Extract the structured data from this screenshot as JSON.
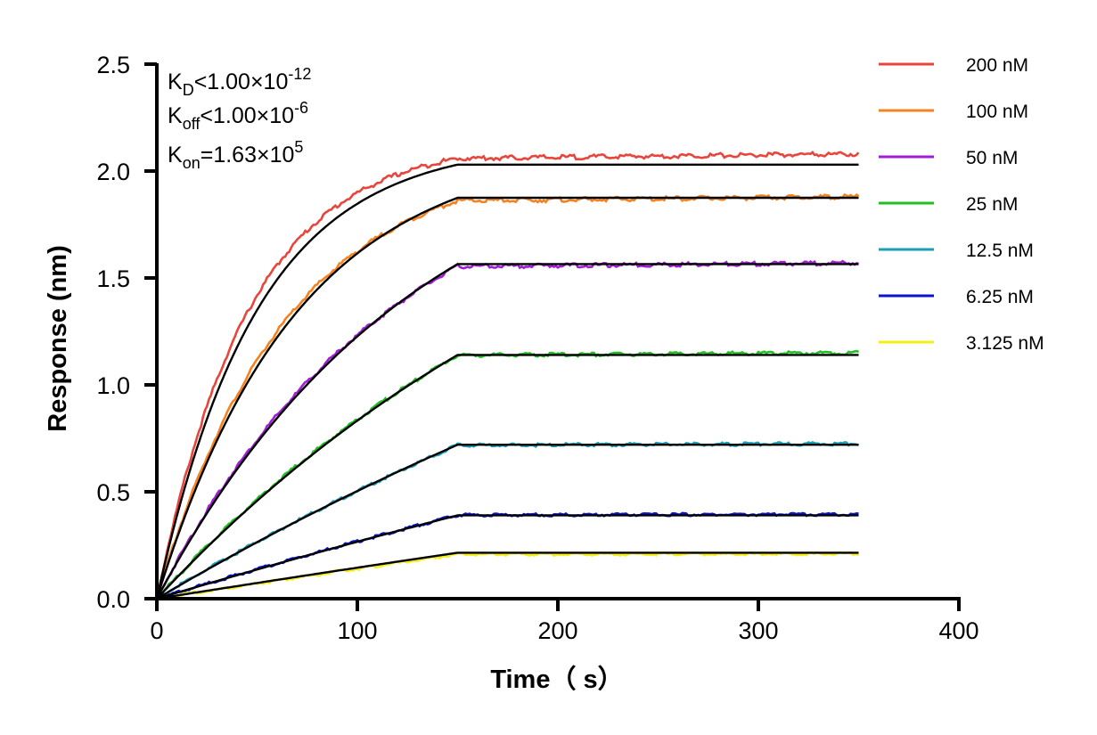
{
  "chart_data": {
    "type": "line",
    "title": "",
    "xlabel": "Time（ s）",
    "ylabel": "Response (nm)",
    "xlim": [
      0,
      400
    ],
    "ylim": [
      0,
      2.5
    ],
    "x_ticks": [
      "0",
      "100",
      "200",
      "300",
      "400"
    ],
    "y_ticks": [
      "0.0",
      "0.5",
      "1.0",
      "1.5",
      "2.0",
      "2.5"
    ],
    "grid": false,
    "legend_position": "right",
    "association_end": 150,
    "x_end": 350,
    "annotations": {
      "kd": {
        "base": "K",
        "sub": "D",
        "op": "<",
        "mantissa": "1.00×10",
        "exp": "-12"
      },
      "koff": {
        "base": "K",
        "sub": "off",
        "op": "<",
        "mantissa": "1.00×10",
        "exp": "-6"
      },
      "kon": {
        "base": "K",
        "sub": "on",
        "op": "=",
        "mantissa": "1.63×10",
        "exp": "5"
      }
    },
    "fit_color": "#000000",
    "series": [
      {
        "name": "200 nM",
        "color": "#e8453c",
        "plateau": 2.08,
        "fit_plateau": 2.03,
        "tau": 50
      },
      {
        "name": "100 nM",
        "color": "#f5821f",
        "plateau": 1.88,
        "fit_plateau": 1.875,
        "tau": 70
      },
      {
        "name": "50 nM",
        "color": "#a21cd6",
        "plateau": 1.57,
        "fit_plateau": 1.565,
        "tau": 130
      },
      {
        "name": "25 nM",
        "color": "#1fc01f",
        "plateau": 1.15,
        "fit_plateau": 1.14,
        "tau": 250
      },
      {
        "name": "12.5 nM",
        "color": "#1e9bb5",
        "plateau": 0.725,
        "fit_plateau": 0.72,
        "tau": 500
      },
      {
        "name": "6.25 nM",
        "color": "#0a14c8",
        "plateau": 0.395,
        "fit_plateau": 0.39,
        "tau": 1000
      },
      {
        "name": "3.125 nM",
        "color": "#f5ee1a",
        "plateau": 0.21,
        "fit_plateau": 0.215,
        "tau": 2000
      }
    ]
  }
}
